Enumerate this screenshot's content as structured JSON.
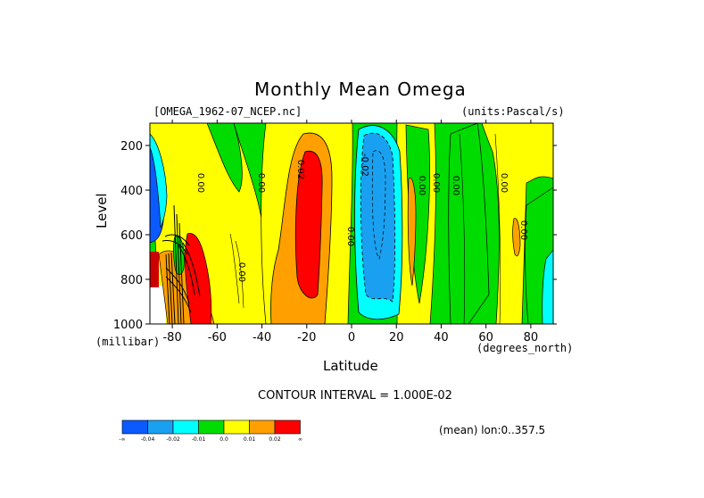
{
  "chart_data": {
    "type": "heatmap",
    "title": "Monthly Mean Omega",
    "subtitle_left": "[OMEGA_1962-07_NCEP.nc]",
    "subtitle_right": "(units:Pascal/s)",
    "xlabel": "Latitude",
    "ylabel": "Level",
    "x_unit": "(degrees_north)",
    "y_unit": "(millibar)",
    "xlim": [
      -90,
      90
    ],
    "ylim": [
      1000,
      100
    ],
    "x_ticks": [
      -80,
      -60,
      -40,
      -20,
      0,
      20,
      40,
      60,
      80
    ],
    "y_ticks": [
      200,
      400,
      600,
      800,
      1000
    ],
    "contour_interval_text": "CONTOUR INTERVAL = 1.000E-02",
    "mean_text": "(mean) lon:0..357.5",
    "contour_labels": [
      "0.00",
      "0.02",
      "-0.02",
      "0.00",
      "0.00",
      "0.00",
      "0.00",
      "0.00",
      "0.00",
      "0.00",
      "0.00"
    ],
    "colorbar": {
      "colors": [
        "#0a5aff",
        "#1aa0f0",
        "#00ffff",
        "#00dc00",
        "#ffff00",
        "#ffa000",
        "#ff0000"
      ],
      "labels": [
        "-∞",
        "-0.04",
        "-0.02",
        "-0.01",
        "0.0",
        "0.01",
        "0.02",
        "∞"
      ]
    }
  }
}
